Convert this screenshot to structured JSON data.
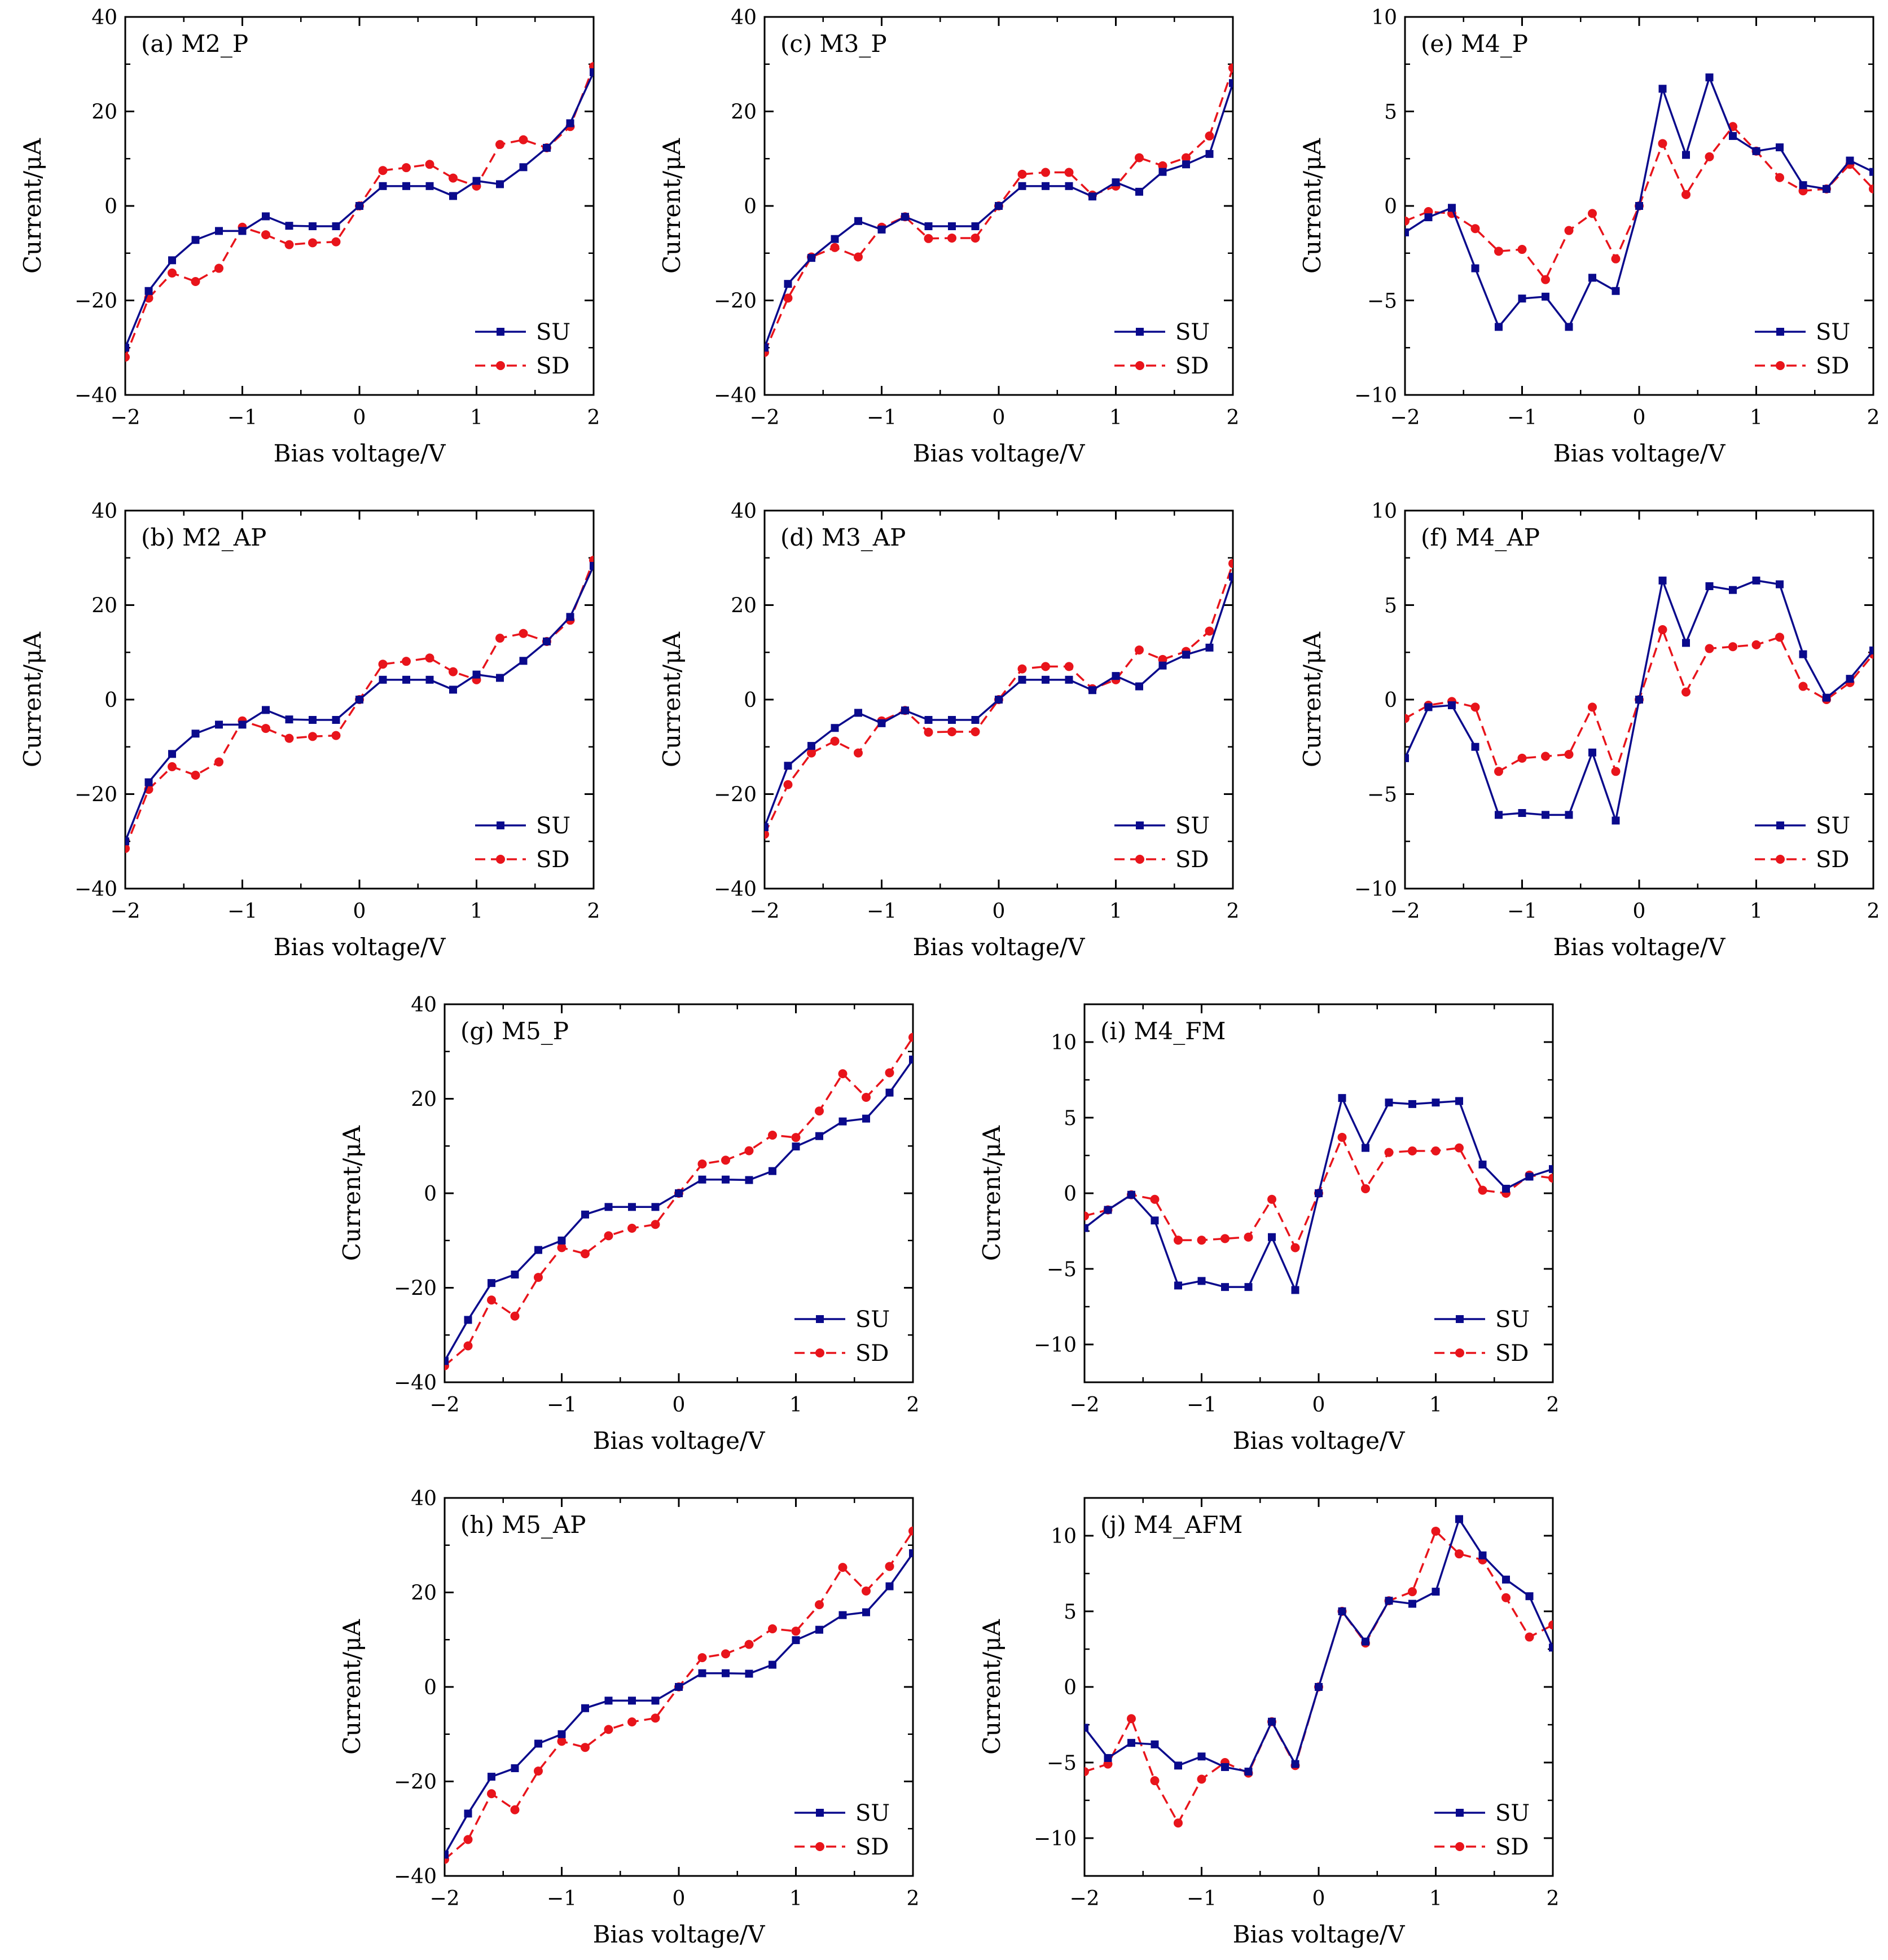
{
  "colors": {
    "SU": "#0a0a8c",
    "SD": "#e8141b",
    "axis": "#000000"
  },
  "chart_data": [
    {
      "id": "a",
      "type": "line",
      "title": "(a) M2_P",
      "xlabel": "Bias voltage/V",
      "ylabel": "Current/μA",
      "xlim": [
        -2,
        2
      ],
      "ylim": [
        -40,
        40
      ],
      "xticks": [
        -2,
        -1,
        0,
        1,
        2
      ],
      "xtick_labels": [
        "−2",
        "−1",
        "0",
        "1",
        "2"
      ],
      "yticks": [
        -40,
        -20,
        0,
        20,
        40
      ],
      "ytick_labels": [
        "−40",
        "−20",
        "0",
        "20",
        "40"
      ],
      "legend_position": "bottom-right",
      "x": [
        -2,
        -1.8,
        -1.6,
        -1.4,
        -1.2,
        -1,
        -0.8,
        -0.6,
        -0.4,
        -0.2,
        0,
        0.2,
        0.4,
        0.6,
        0.8,
        1,
        1.2,
        1.4,
        1.6,
        1.8,
        2
      ],
      "series": [
        {
          "name": "SU",
          "values": [
            -30,
            -18,
            -11.5,
            -7.2,
            -5.3,
            -5.3,
            -2.2,
            -4.2,
            -4.3,
            -4.3,
            0,
            4.2,
            4.2,
            4.2,
            2.1,
            5.3,
            4.6,
            8.2,
            12.3,
            17.5,
            28.3
          ]
        },
        {
          "name": "SD",
          "values": [
            -32,
            -19.5,
            -14.2,
            -16,
            -13.2,
            -4.5,
            -6.1,
            -8.2,
            -7.8,
            -7.6,
            0,
            7.5,
            8.1,
            8.8,
            5.9,
            4.2,
            13,
            14,
            12.3,
            16.8,
            29.5
          ]
        }
      ]
    },
    {
      "id": "c",
      "type": "line",
      "title": "(c) M3_P",
      "xlabel": "Bias voltage/V",
      "ylabel": "Current/μA",
      "xlim": [
        -2,
        2
      ],
      "ylim": [
        -40,
        40
      ],
      "xticks": [
        -2,
        -1,
        0,
        1,
        2
      ],
      "xtick_labels": [
        "−2",
        "−1",
        "0",
        "1",
        "2"
      ],
      "yticks": [
        -40,
        -20,
        0,
        20,
        40
      ],
      "ytick_labels": [
        "−40",
        "−20",
        "0",
        "20",
        "40"
      ],
      "legend_position": "bottom-right",
      "x": [
        -2,
        -1.8,
        -1.6,
        -1.4,
        -1.2,
        -1,
        -0.8,
        -0.6,
        -0.4,
        -0.2,
        0,
        0.2,
        0.4,
        0.6,
        0.8,
        1,
        1.2,
        1.4,
        1.6,
        1.8,
        2
      ],
      "series": [
        {
          "name": "SU",
          "values": [
            -30,
            -16.5,
            -11,
            -7,
            -3.2,
            -5,
            -2.3,
            -4.3,
            -4.3,
            -4.3,
            0,
            4.2,
            4.2,
            4.2,
            2,
            5,
            3,
            7.2,
            8.8,
            11,
            26
          ]
        },
        {
          "name": "SD",
          "values": [
            -31,
            -19.5,
            -10.8,
            -8.8,
            -10.8,
            -4.5,
            -2.3,
            -6.9,
            -6.8,
            -6.8,
            0,
            6.7,
            7.1,
            7.1,
            2.3,
            4.2,
            10.2,
            8.5,
            10.2,
            14.8,
            29.2
          ]
        }
      ]
    },
    {
      "id": "e",
      "type": "line",
      "title": "(e) M4_P",
      "xlabel": "Bias voltage/V",
      "ylabel": "Current/μA",
      "xlim": [
        -2,
        2
      ],
      "ylim": [
        -10,
        10
      ],
      "xticks": [
        -2,
        -1,
        0,
        1,
        2
      ],
      "xtick_labels": [
        "−2",
        "−1",
        "0",
        "1",
        "2"
      ],
      "yticks": [
        -10,
        -5,
        0,
        5,
        10
      ],
      "ytick_labels": [
        "−10",
        "−5",
        "0",
        "5",
        "10"
      ],
      "legend_position": "bottom-right",
      "x": [
        -2,
        -1.8,
        -1.6,
        -1.4,
        -1.2,
        -1,
        -0.8,
        -0.6,
        -0.4,
        -0.2,
        0,
        0.2,
        0.4,
        0.6,
        0.8,
        1,
        1.2,
        1.4,
        1.6,
        1.8,
        2
      ],
      "series": [
        {
          "name": "SU",
          "values": [
            -1.4,
            -0.6,
            -0.1,
            -3.3,
            -6.4,
            -4.9,
            -4.8,
            -6.4,
            -3.8,
            -4.5,
            0,
            6.2,
            2.7,
            6.8,
            3.7,
            2.9,
            3.1,
            1.1,
            0.9,
            2.4,
            1.8
          ]
        },
        {
          "name": "SD",
          "values": [
            -0.8,
            -0.3,
            -0.4,
            -1.2,
            -2.4,
            -2.3,
            -3.9,
            -1.3,
            -0.4,
            -2.8,
            0,
            3.3,
            0.6,
            2.6,
            4.2,
            2.9,
            1.5,
            0.8,
            0.9,
            2.2,
            0.9
          ]
        }
      ]
    },
    {
      "id": "b",
      "type": "line",
      "title": "(b) M2_AP",
      "xlabel": "Bias voltage/V",
      "ylabel": "Current/μA",
      "xlim": [
        -2,
        2
      ],
      "ylim": [
        -40,
        40
      ],
      "xticks": [
        -2,
        -1,
        0,
        1,
        2
      ],
      "xtick_labels": [
        "−2",
        "−1",
        "0",
        "1",
        "2"
      ],
      "yticks": [
        -40,
        -20,
        0,
        20,
        40
      ],
      "ytick_labels": [
        "−40",
        "−20",
        "0",
        "20",
        "40"
      ],
      "legend_position": "bottom-right",
      "x": [
        -2,
        -1.8,
        -1.6,
        -1.4,
        -1.2,
        -1,
        -0.8,
        -0.6,
        -0.4,
        -0.2,
        0,
        0.2,
        0.4,
        0.6,
        0.8,
        1,
        1.2,
        1.4,
        1.6,
        1.8,
        2
      ],
      "series": [
        {
          "name": "SU",
          "values": [
            -30,
            -17.5,
            -11.5,
            -7.2,
            -5.3,
            -5.3,
            -2.2,
            -4.2,
            -4.3,
            -4.3,
            0,
            4.2,
            4.2,
            4.2,
            2.1,
            5.3,
            4.6,
            8.2,
            12.3,
            17.5,
            28.3
          ]
        },
        {
          "name": "SD",
          "values": [
            -31.5,
            -19,
            -14.2,
            -16,
            -13.2,
            -4.5,
            -6.1,
            -8.2,
            -7.8,
            -7.6,
            0,
            7.5,
            8.1,
            8.8,
            5.9,
            4.2,
            13,
            14,
            12.3,
            16.8,
            29.5
          ]
        }
      ]
    },
    {
      "id": "d",
      "type": "line",
      "title": "(d) M3_AP",
      "xlabel": "Bias voltage/V",
      "ylabel": "Current/μA",
      "xlim": [
        -2,
        2
      ],
      "ylim": [
        -40,
        40
      ],
      "xticks": [
        -2,
        -1,
        0,
        1,
        2
      ],
      "xtick_labels": [
        "−2",
        "−1",
        "0",
        "1",
        "2"
      ],
      "yticks": [
        -40,
        -20,
        0,
        20,
        40
      ],
      "ytick_labels": [
        "−40",
        "−20",
        "0",
        "20",
        "40"
      ],
      "legend_position": "bottom-right",
      "x": [
        -2,
        -1.8,
        -1.6,
        -1.4,
        -1.2,
        -1,
        -0.8,
        -0.6,
        -0.4,
        -0.2,
        0,
        0.2,
        0.4,
        0.6,
        0.8,
        1,
        1.2,
        1.4,
        1.6,
        1.8,
        2
      ],
      "series": [
        {
          "name": "SU",
          "values": [
            -27,
            -14,
            -9.8,
            -6,
            -2.8,
            -5,
            -2.3,
            -4.3,
            -4.3,
            -4.3,
            0,
            4.2,
            4.2,
            4.2,
            2,
            5,
            2.8,
            7.2,
            9.5,
            11,
            26
          ]
        },
        {
          "name": "SD",
          "values": [
            -28.5,
            -18,
            -11.3,
            -8.8,
            -11.3,
            -4.5,
            -2.3,
            -6.9,
            -6.8,
            -6.8,
            0,
            6.5,
            7,
            7,
            2.3,
            4.2,
            10.5,
            8.5,
            10.2,
            14.5,
            28.8
          ]
        }
      ]
    },
    {
      "id": "f",
      "type": "line",
      "title": "(f) M4_AP",
      "xlabel": "Bias voltage/V",
      "ylabel": "Current/μA",
      "xlim": [
        -2,
        2
      ],
      "ylim": [
        -10,
        10
      ],
      "xticks": [
        -2,
        -1,
        0,
        1,
        2
      ],
      "xtick_labels": [
        "−2",
        "−1",
        "0",
        "1",
        "2"
      ],
      "yticks": [
        -10,
        -5,
        0,
        5,
        10
      ],
      "ytick_labels": [
        "−10",
        "−5",
        "0",
        "5",
        "10"
      ],
      "legend_position": "bottom-right",
      "x": [
        -2,
        -1.8,
        -1.6,
        -1.4,
        -1.2,
        -1,
        -0.8,
        -0.6,
        -0.4,
        -0.2,
        0,
        0.2,
        0.4,
        0.6,
        0.8,
        1,
        1.2,
        1.4,
        1.6,
        1.8,
        2
      ],
      "series": [
        {
          "name": "SU",
          "values": [
            -3.1,
            -0.4,
            -0.3,
            -2.5,
            -6.1,
            -6,
            -6.1,
            -6.1,
            -2.8,
            -6.4,
            0,
            6.3,
            3,
            6,
            5.8,
            6.3,
            6.1,
            2.4,
            0.1,
            1.1,
            2.6
          ]
        },
        {
          "name": "SD",
          "values": [
            -1,
            -0.3,
            -0.1,
            -0.4,
            -3.8,
            -3.1,
            -3,
            -2.9,
            -0.4,
            -3.8,
            0,
            3.7,
            0.4,
            2.7,
            2.8,
            2.9,
            3.3,
            0.7,
            0,
            0.9,
            2.4
          ]
        }
      ]
    },
    {
      "id": "g",
      "type": "line",
      "title": "(g) M5_P",
      "xlabel": "Bias voltage/V",
      "ylabel": "Current/μA",
      "xlim": [
        -2,
        2
      ],
      "ylim": [
        -40,
        40
      ],
      "xticks": [
        -2,
        -1,
        0,
        1,
        2
      ],
      "xtick_labels": [
        "−2",
        "−1",
        "0",
        "1",
        "2"
      ],
      "yticks": [
        -40,
        -20,
        0,
        20,
        40
      ],
      "ytick_labels": [
        "−40",
        "−20",
        "0",
        "20",
        "40"
      ],
      "legend_position": "bottom-right",
      "x": [
        -2,
        -1.8,
        -1.6,
        -1.4,
        -1.2,
        -1,
        -0.8,
        -0.6,
        -0.4,
        -0.2,
        0,
        0.2,
        0.4,
        0.6,
        0.8,
        1,
        1.2,
        1.4,
        1.6,
        1.8,
        2
      ],
      "series": [
        {
          "name": "SU",
          "values": [
            -35.5,
            -26.8,
            -19,
            -17.2,
            -12,
            -10,
            -4.5,
            -2.9,
            -2.9,
            -2.9,
            0,
            2.9,
            2.9,
            2.8,
            4.7,
            9.9,
            12.1,
            15.2,
            15.8,
            21.3,
            28.3
          ]
        },
        {
          "name": "SD",
          "values": [
            -36.5,
            -32.3,
            -22.6,
            -26,
            -17.8,
            -11.5,
            -12.8,
            -9,
            -7.4,
            -6.6,
            0,
            6.2,
            7,
            9,
            12.3,
            11.8,
            17.4,
            25.3,
            20.3,
            25.5,
            33
          ]
        }
      ]
    },
    {
      "id": "i",
      "type": "line",
      "title": "(i) M4_FM",
      "xlabel": "Bias voltage/V",
      "ylabel": "Current/μA",
      "xlim": [
        -2,
        2
      ],
      "ylim": [
        -12.5,
        12.5
      ],
      "xticks": [
        -2,
        -1,
        0,
        1,
        2
      ],
      "xtick_labels": [
        "−2",
        "−1",
        "0",
        "1",
        "2"
      ],
      "yticks": [
        -10,
        -5,
        0,
        5,
        10
      ],
      "ytick_labels": [
        "−10",
        "−5",
        "0",
        "5",
        "10"
      ],
      "legend_position": "bottom-right",
      "x": [
        -2,
        -1.8,
        -1.6,
        -1.4,
        -1.2,
        -1,
        -0.8,
        -0.6,
        -0.4,
        -0.2,
        0,
        0.2,
        0.4,
        0.6,
        0.8,
        1,
        1.2,
        1.4,
        1.6,
        1.8,
        2
      ],
      "series": [
        {
          "name": "SU",
          "values": [
            -2.3,
            -1.1,
            -0.1,
            -1.8,
            -6.1,
            -5.8,
            -6.2,
            -6.2,
            -2.9,
            -6.4,
            0,
            6.3,
            3,
            6,
            5.9,
            6,
            6.1,
            1.9,
            0.3,
            1.1,
            1.6
          ]
        },
        {
          "name": "SD",
          "values": [
            -1.5,
            -1.1,
            -0.1,
            -0.4,
            -3.1,
            -3.1,
            -3,
            -2.9,
            -0.4,
            -3.6,
            0,
            3.7,
            0.3,
            2.7,
            2.8,
            2.8,
            3,
            0.2,
            0,
            1.2,
            1
          ]
        }
      ]
    },
    {
      "id": "h",
      "type": "line",
      "title": "(h) M5_AP",
      "xlabel": "Bias voltage/V",
      "ylabel": "Current/μA",
      "xlim": [
        -2,
        2
      ],
      "ylim": [
        -40,
        40
      ],
      "xticks": [
        -2,
        -1,
        0,
        1,
        2
      ],
      "xtick_labels": [
        "−2",
        "−1",
        "0",
        "1",
        "2"
      ],
      "yticks": [
        -40,
        -20,
        0,
        20,
        40
      ],
      "ytick_labels": [
        "−40",
        "−20",
        "0",
        "20",
        "40"
      ],
      "legend_position": "bottom-right",
      "x": [
        -2,
        -1.8,
        -1.6,
        -1.4,
        -1.2,
        -1,
        -0.8,
        -0.6,
        -0.4,
        -0.2,
        0,
        0.2,
        0.4,
        0.6,
        0.8,
        1,
        1.2,
        1.4,
        1.6,
        1.8,
        2
      ],
      "series": [
        {
          "name": "SU",
          "values": [
            -35.5,
            -26.8,
            -19,
            -17.2,
            -12,
            -10,
            -4.5,
            -2.9,
            -2.9,
            -2.9,
            0,
            2.9,
            2.9,
            2.8,
            4.7,
            9.9,
            12.1,
            15.2,
            15.8,
            21.3,
            28.3
          ]
        },
        {
          "name": "SD",
          "values": [
            -36.5,
            -32.3,
            -22.6,
            -26,
            -17.8,
            -11.5,
            -12.8,
            -9,
            -7.4,
            -6.6,
            0,
            6.2,
            7,
            9,
            12.3,
            11.8,
            17.4,
            25.3,
            20.3,
            25.5,
            33
          ]
        }
      ]
    },
    {
      "id": "j",
      "type": "line",
      "title": "(j) M4_AFM",
      "xlabel": "Bias voltage/V",
      "ylabel": "Current/μA",
      "xlim": [
        -2,
        2
      ],
      "ylim": [
        -12.5,
        12.5
      ],
      "xticks": [
        -2,
        -1,
        0,
        1,
        2
      ],
      "xtick_labels": [
        "−2",
        "−1",
        "0",
        "1",
        "2"
      ],
      "yticks": [
        -10,
        -5,
        0,
        5,
        10
      ],
      "ytick_labels": [
        "−10",
        "−5",
        "0",
        "5",
        "10"
      ],
      "legend_position": "bottom-right",
      "x": [
        -2,
        -1.8,
        -1.6,
        -1.4,
        -1.2,
        -1,
        -0.8,
        -0.6,
        -0.4,
        -0.2,
        0,
        0.2,
        0.4,
        0.6,
        0.8,
        1,
        1.2,
        1.4,
        1.6,
        1.8,
        2
      ],
      "series": [
        {
          "name": "SU",
          "values": [
            -2.7,
            -4.7,
            -3.7,
            -3.8,
            -5.2,
            -4.6,
            -5.3,
            -5.6,
            -2.3,
            -5.1,
            0,
            5,
            3,
            5.7,
            5.5,
            6.3,
            11.1,
            8.7,
            7.1,
            6,
            2.6
          ]
        },
        {
          "name": "SD",
          "values": [
            -5.6,
            -5.1,
            -2.1,
            -6.2,
            -9,
            -6.1,
            -5,
            -5.7,
            -2.3,
            -5.2,
            0,
            5,
            2.9,
            5.7,
            6.3,
            10.3,
            8.8,
            8.4,
            5.9,
            3.3,
            4.1
          ]
        }
      ]
    }
  ]
}
